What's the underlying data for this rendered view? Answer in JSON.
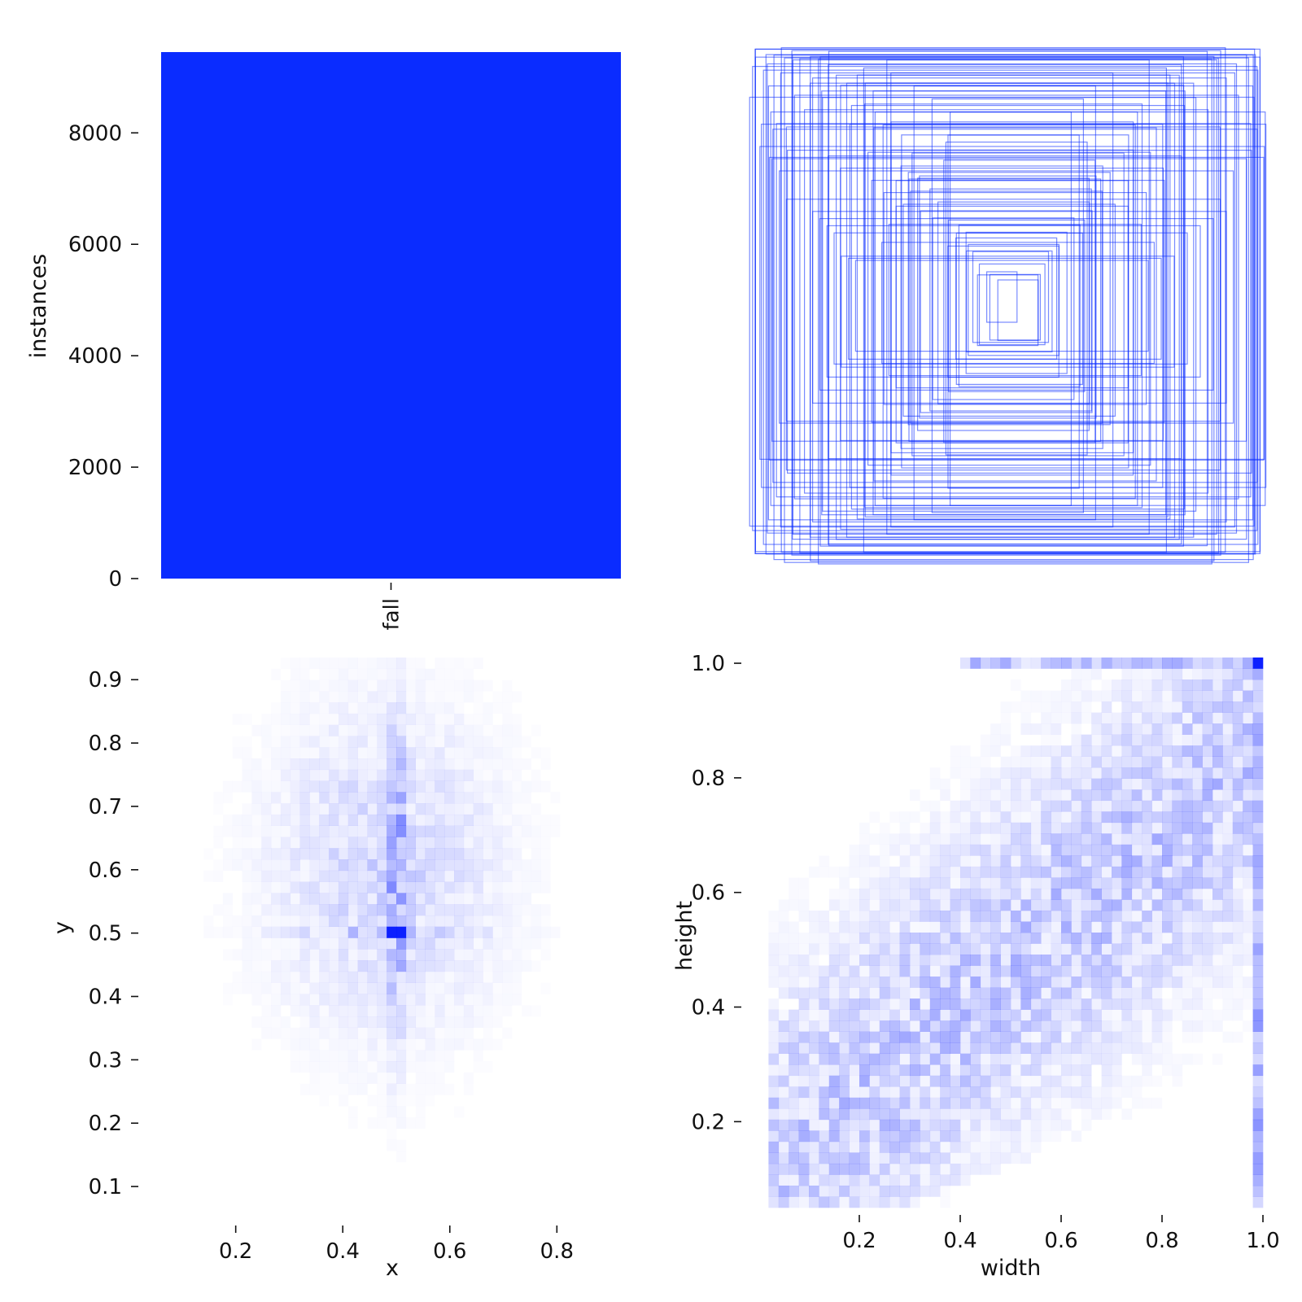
{
  "colors": {
    "bar": "#0a2cff",
    "box": "#0a2cff",
    "heat": "#0014ff",
    "background": "#ffffff"
  },
  "chart_data": [
    {
      "id": "instances",
      "type": "bar",
      "categories": [
        "fall"
      ],
      "values": [
        9450
      ],
      "xlabel": "",
      "ylabel": "instances",
      "ylim": [
        0,
        9450
      ],
      "yticks": [
        0,
        2000,
        4000,
        6000,
        8000
      ],
      "ytick_labels": [
        "0",
        "2000",
        "4000",
        "6000",
        "8000"
      ],
      "grid": false
    },
    {
      "id": "boxes",
      "type": "scatter",
      "description": "overlaid centered bounding boxes",
      "xlabel": "",
      "ylabel": "",
      "grid": false,
      "boxes_wh": [
        [
          0.06,
          0.1
        ],
        [
          0.08,
          0.12
        ],
        [
          0.1,
          0.13
        ],
        [
          0.13,
          0.16
        ],
        [
          0.17,
          0.2
        ],
        [
          0.2,
          0.24
        ],
        [
          0.22,
          0.26
        ],
        [
          0.25,
          0.3
        ],
        [
          0.27,
          0.34
        ],
        [
          0.3,
          0.4
        ],
        [
          0.32,
          0.44
        ],
        [
          0.35,
          0.48
        ],
        [
          0.38,
          0.52
        ],
        [
          0.4,
          0.56
        ],
        [
          0.42,
          0.6
        ],
        [
          0.45,
          0.66
        ],
        [
          0.48,
          0.7
        ],
        [
          0.5,
          0.74
        ],
        [
          0.52,
          0.78
        ],
        [
          0.55,
          0.8
        ],
        [
          0.58,
          0.84
        ],
        [
          0.6,
          0.86
        ],
        [
          0.62,
          0.88
        ],
        [
          0.65,
          0.9
        ],
        [
          0.68,
          0.92
        ],
        [
          0.7,
          0.95
        ],
        [
          0.72,
          0.97
        ],
        [
          0.75,
          0.98
        ],
        [
          0.78,
          1.0
        ],
        [
          0.8,
          1.0
        ],
        [
          0.83,
          0.98
        ],
        [
          0.85,
          1.0
        ],
        [
          0.88,
          1.0
        ],
        [
          0.9,
          0.96
        ],
        [
          0.92,
          1.0
        ],
        [
          0.95,
          1.0
        ],
        [
          0.97,
          0.99
        ],
        [
          1.0,
          1.0
        ],
        [
          1.0,
          0.92
        ],
        [
          1.0,
          0.85
        ],
        [
          0.98,
          0.78
        ],
        [
          0.96,
          0.7
        ],
        [
          1.0,
          0.62
        ],
        [
          0.94,
          0.56
        ],
        [
          0.9,
          0.5
        ],
        [
          0.86,
          0.44
        ],
        [
          0.82,
          0.38
        ],
        [
          0.78,
          0.34
        ],
        [
          0.74,
          0.3
        ],
        [
          0.7,
          0.26
        ],
        [
          0.66,
          0.22
        ],
        [
          0.62,
          0.2
        ],
        [
          0.58,
          0.18
        ],
        [
          0.54,
          0.24
        ],
        [
          0.5,
          0.3
        ],
        [
          0.46,
          0.36
        ],
        [
          0.42,
          0.42
        ],
        [
          0.38,
          0.46
        ],
        [
          0.34,
          0.5
        ],
        [
          0.3,
          0.56
        ],
        [
          0.28,
          0.62
        ],
        [
          0.26,
          0.7
        ],
        [
          0.24,
          0.78
        ],
        [
          0.3,
          0.82
        ],
        [
          0.36,
          0.86
        ],
        [
          0.44,
          0.9
        ],
        [
          0.52,
          0.94
        ],
        [
          0.6,
          0.96
        ],
        [
          0.68,
          0.88
        ],
        [
          0.74,
          0.82
        ],
        [
          0.8,
          0.76
        ],
        [
          0.86,
          0.68
        ],
        [
          0.92,
          0.64
        ],
        [
          0.98,
          0.6
        ],
        [
          1.0,
          0.72
        ],
        [
          0.96,
          0.86
        ],
        [
          0.9,
          0.9
        ],
        [
          0.84,
          0.94
        ],
        [
          0.76,
          0.9
        ],
        [
          0.66,
          0.8
        ],
        [
          0.56,
          0.7
        ],
        [
          0.48,
          0.6
        ],
        [
          0.4,
          0.5
        ],
        [
          0.34,
          0.4
        ],
        [
          0.28,
          0.36
        ],
        [
          0.24,
          0.32
        ],
        [
          0.2,
          0.28
        ],
        [
          0.18,
          0.22
        ],
        [
          0.15,
          0.18
        ],
        [
          0.12,
          0.14
        ],
        [
          0.7,
          0.6
        ],
        [
          0.64,
          0.54
        ],
        [
          0.58,
          0.48
        ],
        [
          0.52,
          0.42
        ],
        [
          0.46,
          0.52
        ],
        [
          0.56,
          0.62
        ],
        [
          0.62,
          0.72
        ],
        [
          0.72,
          0.84
        ],
        [
          0.82,
          0.88
        ],
        [
          0.88,
          0.8
        ],
        [
          0.94,
          0.74
        ],
        [
          0.98,
          0.94
        ],
        [
          1.0,
          0.98
        ],
        [
          0.99,
          1.0
        ],
        [
          0.93,
          0.93
        ]
      ]
    },
    {
      "id": "xy",
      "type": "heatmap",
      "xlabel": "x",
      "ylabel": "y",
      "xlim": [
        0.05,
        0.95
      ],
      "ylim": [
        0.05,
        0.935
      ],
      "xticks": [
        0.2,
        0.4,
        0.6,
        0.8
      ],
      "xtick_labels": [
        "0.2",
        "0.4",
        "0.6",
        "0.8"
      ],
      "yticks": [
        0.1,
        0.2,
        0.3,
        0.4,
        0.5,
        0.6,
        0.7,
        0.8,
        0.9
      ],
      "ytick_labels": [
        "0.1",
        "0.2",
        "0.3",
        "0.4",
        "0.5",
        "0.6",
        "0.7",
        "0.8",
        "0.9"
      ],
      "bins": 50,
      "peak": [
        0.5,
        0.5
      ],
      "grid": false
    },
    {
      "id": "wh",
      "type": "heatmap",
      "xlabel": "width",
      "ylabel": "height",
      "xlim": [
        0.0,
        1.0
      ],
      "ylim": [
        0.05,
        1.01
      ],
      "xticks": [
        0.2,
        0.4,
        0.6,
        0.8,
        1.0
      ],
      "xtick_labels": [
        "0.2",
        "0.4",
        "0.6",
        "0.8",
        "1.0"
      ],
      "yticks": [
        0.2,
        0.4,
        0.6,
        0.8,
        1.0
      ],
      "ytick_labels": [
        "0.2",
        "0.4",
        "0.6",
        "0.8",
        "1.0"
      ],
      "bins": 50,
      "peak": [
        1.0,
        1.0
      ],
      "grid": false
    }
  ]
}
